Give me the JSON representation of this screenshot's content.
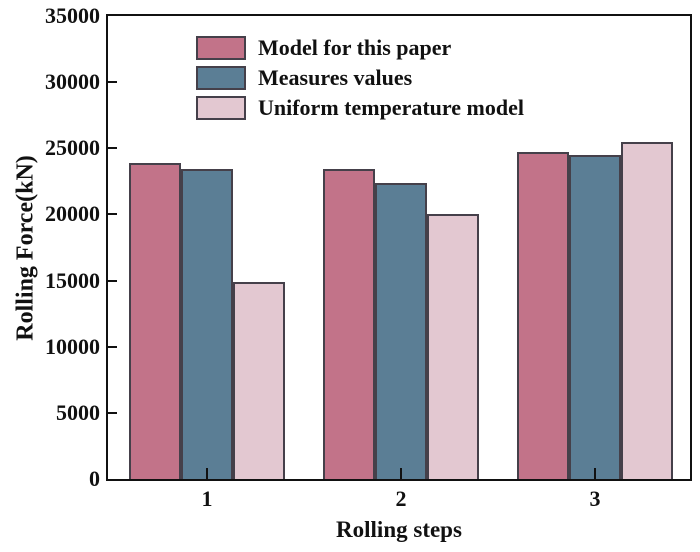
{
  "chart_data": {
    "type": "bar",
    "xlabel": "Rolling steps",
    "ylabel": "Rolling Force(kN)",
    "ylim": [
      0,
      35000
    ],
    "yticks": [
      0,
      5000,
      10000,
      15000,
      20000,
      25000,
      30000,
      35000
    ],
    "categories": [
      "1",
      "2",
      "3"
    ],
    "series": [
      {
        "name": "Model for this paper",
        "color": "#c27389",
        "values": [
          23900,
          23400,
          24700
        ]
      },
      {
        "name": "Measures values",
        "color": "#5b7e95",
        "values": [
          23400,
          22400,
          24500
        ]
      },
      {
        "name": "Uniform temperature model",
        "color": "#e3c8d1",
        "values": [
          14900,
          20000,
          25500
        ]
      }
    ],
    "legend_position": "top-left",
    "grid": false,
    "axis_color": "#111111",
    "bar_border_color": "#45404a",
    "text_color": "#111111",
    "background": "#ffffff"
  }
}
